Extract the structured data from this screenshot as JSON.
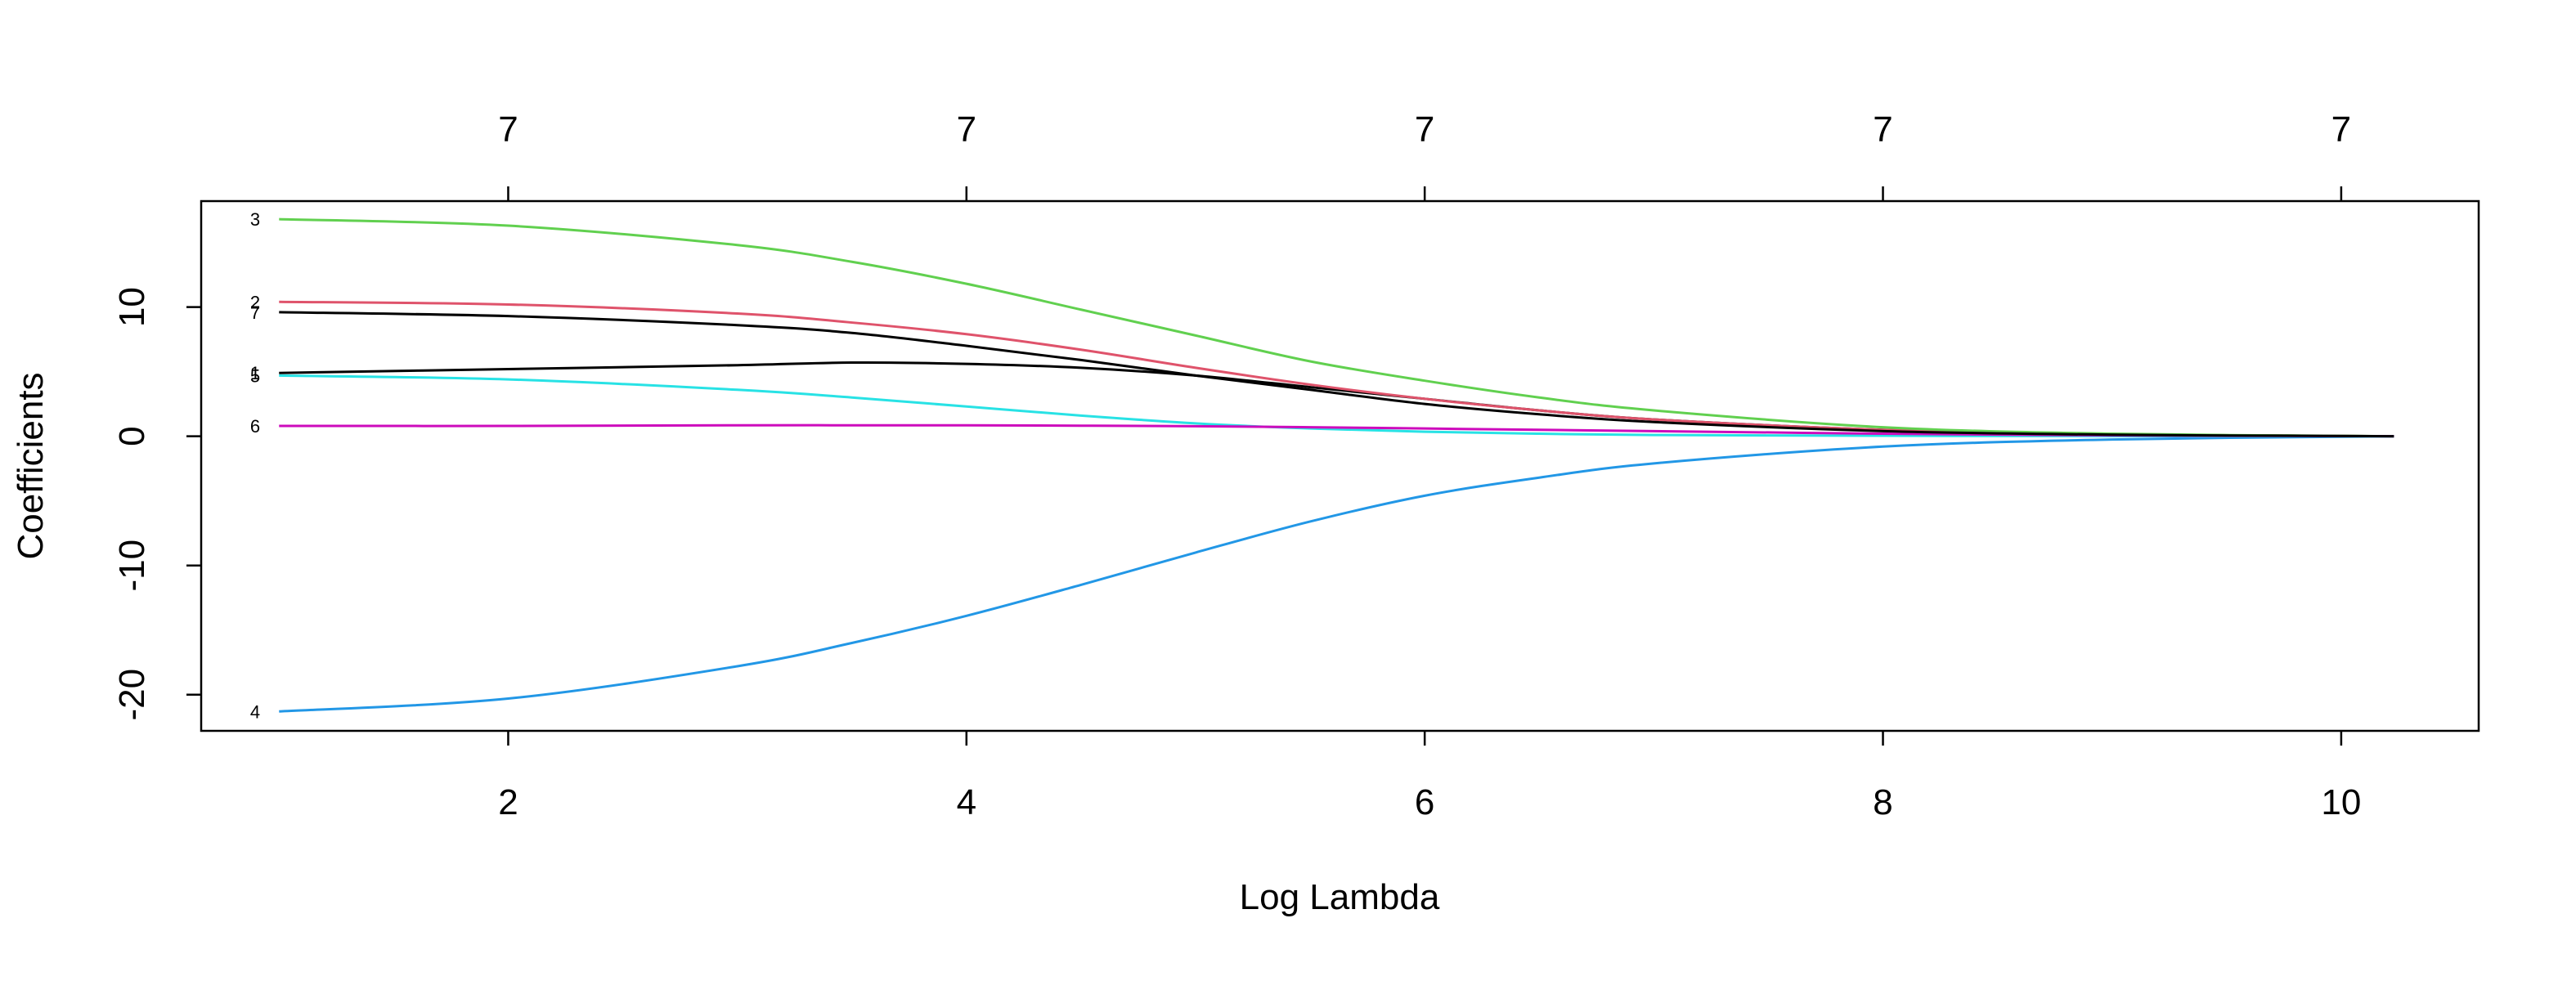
{
  "chart_data": {
    "type": "line",
    "xlabel": "Log Lambda",
    "ylabel": "Coefficients",
    "xlim": [
      0.66,
      10.6
    ],
    "ylim": [
      -22.8,
      18.2
    ],
    "x_ticks": [
      2,
      4,
      6,
      8,
      10
    ],
    "y_ticks": [
      -20,
      -10,
      0,
      10
    ],
    "top_axis": {
      "ticks": [
        2,
        4,
        6,
        8,
        10
      ],
      "labels": [
        "7",
        "7",
        "7",
        "7",
        "7"
      ]
    },
    "grid": false,
    "x": [
      1.0,
      2.0,
      3.0,
      3.5,
      4.0,
      4.5,
      5.0,
      5.5,
      6.0,
      6.5,
      7.0,
      8.0,
      9.0,
      10.23
    ],
    "series": [
      {
        "name": "1",
        "color": "#000000",
        "values": [
          4.9,
          5.2,
          5.5,
          5.7,
          5.6,
          5.3,
          4.7,
          3.8,
          2.9,
          2.0,
          1.3,
          0.5,
          0.15,
          0.0
        ]
      },
      {
        "name": "2",
        "color": "#DF536B",
        "values": [
          10.4,
          10.2,
          9.5,
          8.8,
          7.9,
          6.7,
          5.3,
          4.0,
          2.9,
          2.0,
          1.3,
          0.5,
          0.15,
          0.0
        ]
      },
      {
        "name": "3",
        "color": "#61D04F",
        "values": [
          16.8,
          16.3,
          14.8,
          13.5,
          11.8,
          9.8,
          7.8,
          5.8,
          4.3,
          3.0,
          2.0,
          0.7,
          0.2,
          0.0
        ]
      },
      {
        "name": "4",
        "color": "#2297E6",
        "values": [
          -21.3,
          -20.3,
          -17.8,
          -16.0,
          -13.9,
          -11.5,
          -9.0,
          -6.6,
          -4.6,
          -3.2,
          -2.1,
          -0.8,
          -0.25,
          0.0
        ]
      },
      {
        "name": "5",
        "color": "#28E2E5",
        "values": [
          4.7,
          4.4,
          3.6,
          3.0,
          2.3,
          1.6,
          1.0,
          0.6,
          0.35,
          0.2,
          0.1,
          0.04,
          0.01,
          0.0
        ]
      },
      {
        "name": "6",
        "color": "#CD0BBC",
        "values": [
          0.8,
          0.8,
          0.85,
          0.85,
          0.85,
          0.82,
          0.78,
          0.7,
          0.6,
          0.5,
          0.4,
          0.2,
          0.07,
          0.0
        ]
      },
      {
        "name": "7",
        "color": "#000000",
        "values": [
          9.6,
          9.3,
          8.6,
          8.0,
          7.0,
          5.9,
          4.7,
          3.6,
          2.5,
          1.7,
          1.1,
          0.4,
          0.12,
          0.0
        ]
      }
    ],
    "labels_left": [
      {
        "text": "3",
        "series": "3"
      },
      {
        "text": "2",
        "series": "2"
      },
      {
        "text": "7",
        "series": "7"
      },
      {
        "text": "1",
        "series": "1"
      },
      {
        "text": "5",
        "series": "5"
      },
      {
        "text": "6",
        "series": "6"
      },
      {
        "text": "4",
        "series": "4"
      }
    ]
  }
}
